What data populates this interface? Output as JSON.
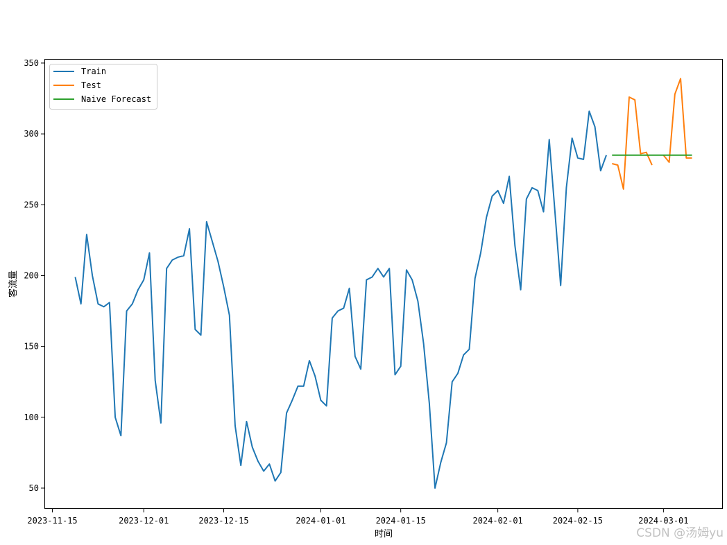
{
  "chart_data": {
    "type": "line",
    "xlabel": "时间",
    "ylabel": "客流量",
    "x_scale": "date",
    "xlim": [
      "2023-11-13T14:24",
      "2024-03-11T09:36"
    ],
    "ylim": [
      35.3,
      352.9
    ],
    "xticks": [
      "2023-11-15",
      "2023-12-01",
      "2023-12-15",
      "2024-01-01",
      "2024-01-15",
      "2024-02-01",
      "2024-02-15",
      "2024-03-01"
    ],
    "yticks": [
      50,
      100,
      150,
      200,
      250,
      300,
      350
    ],
    "grid": false,
    "legend_position": "top-left",
    "series": [
      {
        "name": "Train",
        "color": "#1f77b4",
        "x": [
          "2023-11-19",
          "2023-11-20",
          "2023-11-21",
          "2023-11-22",
          "2023-11-23",
          "2023-11-24",
          "2023-11-25",
          "2023-11-26",
          "2023-11-27",
          "2023-11-28",
          "2023-11-29",
          "2023-11-30",
          "2023-12-01",
          "2023-12-02",
          "2023-12-03",
          "2023-12-04",
          "2023-12-05",
          "2023-12-06",
          "2023-12-07",
          "2023-12-08",
          "2023-12-09",
          "2023-12-10",
          "2023-12-11",
          "2023-12-12",
          "2023-12-13",
          "2023-12-14",
          "2023-12-15",
          "2023-12-16",
          "2023-12-17",
          "2023-12-18",
          "2023-12-19",
          "2023-12-20",
          "2023-12-21",
          "2023-12-22",
          "2023-12-23",
          "2023-12-24",
          "2023-12-25",
          "2023-12-26",
          "2023-12-27",
          "2023-12-28",
          "2023-12-29",
          "2023-12-30",
          "2023-12-31",
          "2024-01-01",
          "2024-01-02",
          "2024-01-03",
          "2024-01-04",
          "2024-01-05",
          "2024-01-06",
          "2024-01-07",
          "2024-01-08",
          "2024-01-09",
          "2024-01-10",
          "2024-01-11",
          "2024-01-12",
          "2024-01-13",
          "2024-01-14",
          "2024-01-15",
          "2024-01-16",
          "2024-01-17",
          "2024-01-18",
          "2024-01-19",
          "2024-01-20",
          "2024-01-21",
          "2024-01-22",
          "2024-01-23",
          "2024-01-24",
          "2024-01-25",
          "2024-01-26",
          "2024-01-27",
          "2024-01-28",
          "2024-01-29",
          "2024-01-30",
          "2024-01-31",
          "2024-02-01",
          "2024-02-02",
          "2024-02-03",
          "2024-02-04",
          "2024-02-05",
          "2024-02-06",
          "2024-02-07",
          "2024-02-08",
          "2024-02-09",
          "2024-02-10",
          "2024-02-11",
          "2024-02-12",
          "2024-02-13",
          "2024-02-14",
          "2024-02-15",
          "2024-02-16",
          "2024-02-17",
          "2024-02-18",
          "2024-02-19",
          "2024-02-20"
        ],
        "y": [
          199,
          180,
          229,
          200,
          180,
          178,
          181,
          100,
          87,
          175,
          180,
          190,
          197,
          216,
          126,
          96,
          205,
          211,
          213,
          214,
          233,
          162,
          158,
          238,
          224,
          210,
          192,
          172,
          94,
          66,
          97,
          79,
          69,
          62,
          67,
          55,
          61,
          103,
          112,
          122,
          122,
          140,
          129,
          112,
          108,
          170,
          175,
          177,
          191,
          143,
          134,
          197,
          199,
          205,
          199,
          205,
          130,
          136,
          204,
          197,
          182,
          152,
          110,
          50,
          68,
          82,
          125,
          131,
          144,
          148,
          198,
          216,
          241,
          256,
          260,
          251,
          270,
          221,
          190,
          254,
          262,
          260,
          245,
          296,
          245,
          193,
          262,
          297,
          283,
          282,
          316,
          305,
          274,
          285
        ]
      },
      {
        "name": "Test",
        "color": "#ff7f0e",
        "x": [
          "2024-02-21",
          "2024-02-22",
          "2024-02-23",
          "2024-02-24",
          "2024-02-25",
          "2024-02-26",
          "2024-02-27",
          "2024-02-28",
          "2024-02-29",
          "2024-03-01",
          "2024-03-02",
          "2024-03-03",
          "2024-03-04",
          "2024-03-05",
          "2024-03-06"
        ],
        "y": [
          279,
          278,
          261,
          326,
          324,
          286,
          287,
          278,
          null,
          285,
          280,
          328,
          339,
          283,
          283
        ]
      },
      {
        "name": "Naive Forecast",
        "color": "#2ca02c",
        "x": [
          "2024-02-21",
          "2024-02-22",
          "2024-02-23",
          "2024-02-24",
          "2024-02-25",
          "2024-02-26",
          "2024-02-27",
          "2024-02-28",
          "2024-02-29",
          "2024-03-01",
          "2024-03-02",
          "2024-03-03",
          "2024-03-04",
          "2024-03-05",
          "2024-03-06"
        ],
        "y": [
          285,
          285,
          285,
          285,
          285,
          285,
          285,
          285,
          285,
          285,
          285,
          285,
          285,
          285,
          285
        ]
      }
    ]
  },
  "watermark": "CSDN @汤姆yu"
}
